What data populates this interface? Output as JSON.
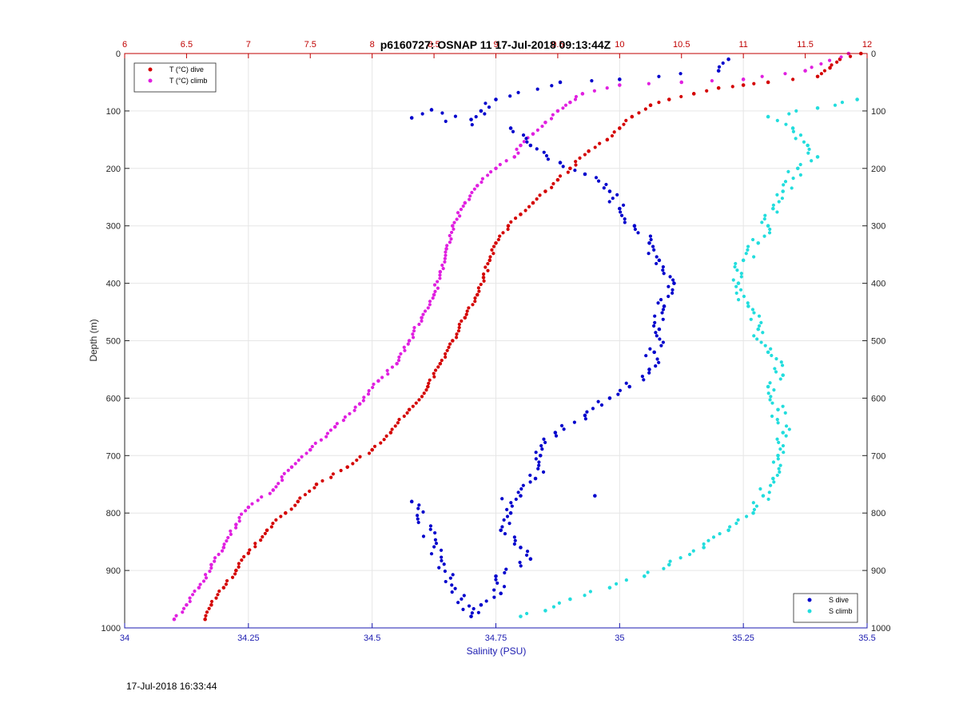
{
  "footer": {
    "timestamp": "17-Jul-2018 16:33:44"
  },
  "chart_data": {
    "type": "scatter",
    "title": "p6160727: OSNAP 11 17-Jul-2018 09:13:44Z",
    "ylabel": "Depth (m)",
    "xlabel": "Salinity (PSU)",
    "xlabel_top": "",
    "ylim": [
      1000,
      0
    ],
    "y_ticks": [
      0,
      100,
      200,
      300,
      400,
      500,
      600,
      700,
      800,
      900,
      1000
    ],
    "x_bottom": {
      "lim": [
        34,
        35.5
      ],
      "ticks": [
        34,
        34.25,
        34.5,
        34.75,
        35,
        35.25,
        35.5
      ],
      "tick_labels": [
        "34",
        "34.25",
        "34.5",
        "34.75",
        "35",
        "35.25",
        "35.5"
      ]
    },
    "x_top": {
      "lim": [
        6,
        12
      ],
      "ticks": [
        6,
        6.5,
        7,
        7.5,
        8,
        8.5,
        9,
        9.5,
        10,
        10.5,
        11,
        11.5,
        12
      ],
      "tick_labels": [
        "6",
        "6.5",
        "7",
        "7.5",
        "8",
        "8.5",
        "9",
        "9.5",
        "10",
        "10.5",
        "11",
        "11.5",
        "12"
      ]
    },
    "grid": true,
    "legends": [
      {
        "placement": "top-left",
        "entries": [
          "T (°C) dive",
          "T (°C) climb"
        ]
      },
      {
        "placement": "bottom-right",
        "entries": [
          "S dive",
          "S climb"
        ]
      }
    ],
    "series": [
      {
        "name": "T (°C) dive",
        "axis": "top",
        "color": "#d40000",
        "points": [
          [
            11.95,
            0
          ],
          [
            11.78,
            10
          ],
          [
            11.7,
            25
          ],
          [
            11.6,
            40
          ],
          [
            11.2,
            50
          ],
          [
            11.0,
            55
          ],
          [
            10.8,
            60
          ],
          [
            10.6,
            70
          ],
          [
            10.4,
            80
          ],
          [
            10.25,
            90
          ],
          [
            10.1,
            110
          ],
          [
            10.0,
            130
          ],
          [
            9.9,
            150
          ],
          [
            9.75,
            170
          ],
          [
            9.6,
            200
          ],
          [
            9.5,
            220
          ],
          [
            9.4,
            240
          ],
          [
            9.3,
            260
          ],
          [
            9.2,
            280
          ],
          [
            9.1,
            300
          ],
          [
            9.0,
            330
          ],
          [
            8.95,
            360
          ],
          [
            8.9,
            390
          ],
          [
            8.85,
            420
          ],
          [
            8.75,
            460
          ],
          [
            8.65,
            500
          ],
          [
            8.55,
            540
          ],
          [
            8.45,
            580
          ],
          [
            8.3,
            620
          ],
          [
            8.15,
            660
          ],
          [
            8.0,
            690
          ],
          [
            7.8,
            720
          ],
          [
            7.55,
            750
          ],
          [
            7.4,
            780
          ],
          [
            7.3,
            800
          ],
          [
            7.15,
            830
          ],
          [
            7.0,
            870
          ],
          [
            6.9,
            900
          ],
          [
            6.8,
            930
          ],
          [
            6.7,
            960
          ],
          [
            6.65,
            985
          ]
        ]
      },
      {
        "name": "T (°C) climb",
        "axis": "top",
        "color": "#e020e0",
        "points": [
          [
            11.85,
            0
          ],
          [
            11.5,
            30
          ],
          [
            11.0,
            45
          ],
          [
            10.5,
            50
          ],
          [
            10.0,
            55
          ],
          [
            9.7,
            70
          ],
          [
            9.6,
            85
          ],
          [
            9.5,
            100
          ],
          [
            9.4,
            120
          ],
          [
            9.3,
            140
          ],
          [
            9.2,
            160
          ],
          [
            9.15,
            180
          ],
          [
            9.0,
            200
          ],
          [
            8.85,
            230
          ],
          [
            8.75,
            260
          ],
          [
            8.65,
            300
          ],
          [
            8.6,
            340
          ],
          [
            8.55,
            380
          ],
          [
            8.5,
            420
          ],
          [
            8.4,
            460
          ],
          [
            8.3,
            500
          ],
          [
            8.2,
            540
          ],
          [
            8.05,
            570
          ],
          [
            7.9,
            610
          ],
          [
            7.7,
            650
          ],
          [
            7.5,
            690
          ],
          [
            7.35,
            720
          ],
          [
            7.2,
            760
          ],
          [
            7.0,
            790
          ],
          [
            6.9,
            820
          ],
          [
            6.8,
            860
          ],
          [
            6.7,
            890
          ],
          [
            6.6,
            930
          ],
          [
            6.5,
            960
          ],
          [
            6.4,
            985
          ]
        ]
      },
      {
        "name": "S dive",
        "axis": "bottom",
        "color": "#0000cc",
        "points": [
          [
            35.22,
            10
          ],
          [
            35.2,
            30
          ],
          [
            35.0,
            45
          ],
          [
            34.88,
            50
          ],
          [
            34.75,
            80
          ],
          [
            34.72,
            100
          ],
          [
            34.7,
            115
          ],
          [
            34.62,
            98
          ],
          [
            34.58,
            112
          ],
          [
            34.78,
            130
          ],
          [
            34.82,
            160
          ],
          [
            34.88,
            190
          ],
          [
            34.93,
            210
          ],
          [
            34.98,
            240
          ],
          [
            35.0,
            270
          ],
          [
            35.03,
            300
          ],
          [
            35.06,
            330
          ],
          [
            35.08,
            360
          ],
          [
            35.11,
            400
          ],
          [
            35.09,
            440
          ],
          [
            35.08,
            480
          ],
          [
            35.07,
            520
          ],
          [
            35.06,
            550
          ],
          [
            35.02,
            580
          ],
          [
            34.98,
            600
          ],
          [
            34.93,
            630
          ],
          [
            34.87,
            660
          ],
          [
            34.84,
            700
          ],
          [
            34.83,
            740
          ],
          [
            34.8,
            770
          ],
          [
            34.78,
            800
          ],
          [
            34.76,
            830
          ],
          [
            34.8,
            860
          ],
          [
            34.82,
            880
          ],
          [
            34.75,
            910
          ],
          [
            34.76,
            940
          ],
          [
            34.72,
            960
          ],
          [
            34.7,
            980
          ],
          [
            34.58,
            780
          ],
          [
            34.95,
            770
          ]
        ]
      },
      {
        "name": "S climb",
        "axis": "bottom",
        "color": "#22dddd",
        "points": [
          [
            35.48,
            80
          ],
          [
            35.4,
            95
          ],
          [
            35.3,
            110
          ],
          [
            35.35,
            130
          ],
          [
            35.38,
            160
          ],
          [
            35.4,
            180
          ],
          [
            35.36,
            200
          ],
          [
            35.33,
            240
          ],
          [
            35.31,
            270
          ],
          [
            35.3,
            300
          ],
          [
            35.28,
            330
          ],
          [
            35.25,
            360
          ],
          [
            35.24,
            400
          ],
          [
            35.26,
            440
          ],
          [
            35.28,
            480
          ],
          [
            35.3,
            520
          ],
          [
            35.33,
            560
          ],
          [
            35.3,
            580
          ],
          [
            35.32,
            620
          ],
          [
            35.33,
            660
          ],
          [
            35.32,
            700
          ],
          [
            35.31,
            740
          ],
          [
            35.29,
            770
          ],
          [
            35.27,
            800
          ],
          [
            35.22,
            830
          ],
          [
            35.17,
            860
          ],
          [
            35.1,
            890
          ],
          [
            35.05,
            910
          ],
          [
            34.98,
            930
          ],
          [
            34.9,
            950
          ],
          [
            34.85,
            970
          ],
          [
            34.8,
            980
          ]
        ]
      }
    ]
  }
}
